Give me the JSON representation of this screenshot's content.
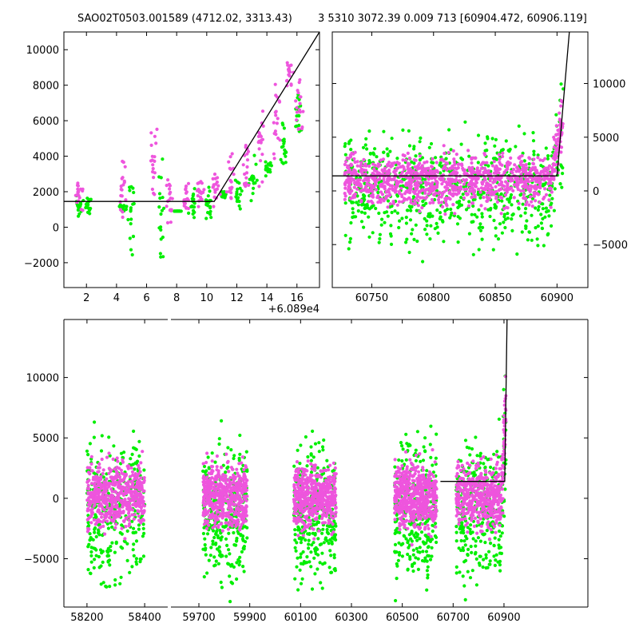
{
  "colors": {
    "green": "#00ee00",
    "magenta": "#ee55dd",
    "fit": "#000000",
    "background": "#ffffff"
  },
  "titles": {
    "left": "SAO02T0503.001589 (4712.02, 3313.43)",
    "right": "3 5310 3072.39 0.009 713 [60904.472, 60906.119]"
  },
  "chart_data": [
    {
      "id": "top-left",
      "type": "scatter",
      "xlim": [
        0.5,
        17.5
      ],
      "ylim": [
        -3400,
        11000
      ],
      "xticks": [
        2,
        4,
        6,
        8,
        10,
        12,
        14,
        16
      ],
      "xtick_labels": [
        "2",
        "4",
        "6",
        "8",
        "10",
        "12",
        "14",
        "16"
      ],
      "yticks": [
        -2000,
        0,
        2000,
        4000,
        6000,
        8000,
        10000
      ],
      "ytick_labels": [
        "−2000",
        "0",
        "2000",
        "4000",
        "6000",
        "8000",
        "10000"
      ],
      "offset_label": "+6.089e4",
      "fit_line": {
        "x": [
          0.5,
          10.5,
          17.5
        ],
        "y": [
          1450,
          1450,
          11000
        ]
      },
      "series": [
        {
          "name": "green",
          "groups": [
            [
              1.5,
              1.1,
              300
            ],
            [
              2.1,
              1.2,
              330
            ],
            [
              4.4,
              1.1,
              90
            ],
            [
              5.0,
              0.8,
              -1100
            ],
            [
              6.9,
              0.6,
              -1300
            ],
            [
              8.1,
              0.9,
              0
            ],
            [
              9.1,
              1.2,
              400
            ],
            [
              10.1,
              1.4,
              400
            ],
            [
              11.2,
              1.8,
              100
            ],
            [
              12.1,
              2.0,
              -400
            ],
            [
              13.1,
              2.6,
              -600
            ],
            [
              14.1,
              3.4,
              -200
            ],
            [
              15.1,
              4.5,
              600
            ],
            [
              16.1,
              6.6,
              800
            ]
          ]
        },
        {
          "name": "magenta",
          "groups": [
            [
              1.5,
              1.8,
              420
            ],
            [
              4.4,
              2.0,
              800
            ],
            [
              6.4,
              3.5,
              1300
            ],
            [
              7.5,
              1.3,
              700
            ],
            [
              8.6,
              1.6,
              550
            ],
            [
              9.6,
              1.8,
              500
            ],
            [
              10.6,
              2.1,
              500
            ],
            [
              11.6,
              2.8,
              700
            ],
            [
              12.6,
              3.5,
              800
            ],
            [
              13.6,
              4.6,
              1000
            ],
            [
              14.6,
              6.2,
              1300
            ],
            [
              15.5,
              8.5,
              500
            ],
            [
              16.2,
              7.2,
              1000
            ]
          ]
        }
      ]
    },
    {
      "id": "top-right",
      "type": "scatter",
      "xlim": [
        60718,
        60925
      ],
      "ylim": [
        -9000,
        14800
      ],
      "xticks": [
        60750,
        60800,
        60850,
        60900
      ],
      "xtick_labels": [
        "60750",
        "60800",
        "60850",
        "60900"
      ],
      "yticks": [
        -5000,
        0,
        5000,
        10000
      ],
      "ytick_labels": [
        "−5000",
        "0",
        "5000",
        "10000"
      ],
      "fit_line": {
        "x": [
          60718,
          60900,
          60910
        ],
        "y": [
          1400,
          1400,
          14800
        ]
      },
      "series": [
        {
          "name": "green",
          "range": [
            60728,
            60905
          ],
          "center": 200,
          "spread": 2400
        },
        {
          "name": "magenta",
          "range": [
            60728,
            60905
          ],
          "center": 1000,
          "spread": 1200
        }
      ]
    },
    {
      "id": "bottom",
      "type": "scatter",
      "ylim": [
        -9000,
        14800
      ],
      "yticks": [
        -5000,
        0,
        5000,
        10000
      ],
      "ytick_labels": [
        "−5000",
        "0",
        "5000",
        "10000"
      ],
      "segments": [
        {
          "xlim": [
            58120,
            58480
          ],
          "xticks": [
            58200,
            58400
          ],
          "xtick_labels": [
            "58200",
            "58400"
          ]
        },
        {
          "xlim": [
            59590,
            61230
          ],
          "xticks": [
            59700,
            59900,
            60100,
            60300,
            60500,
            60700,
            60900
          ],
          "xtick_labels": [
            "59700",
            "59900",
            "60100",
            "60300",
            "60500",
            "60700",
            "60900"
          ]
        }
      ],
      "fit_line": {
        "x": [
          60650,
          60903,
          60912
        ],
        "y": [
          1400,
          1400,
          14800
        ]
      },
      "clusters": [
        [
          58200,
          58400
        ],
        [
          59715,
          59890
        ],
        [
          60073,
          60240
        ],
        [
          60470,
          60635
        ],
        [
          60712,
          60908
        ]
      ],
      "series": [
        {
          "name": "green",
          "center": -1000,
          "spread": 2800
        },
        {
          "name": "magenta",
          "center": 200,
          "spread": 1300
        }
      ]
    }
  ]
}
